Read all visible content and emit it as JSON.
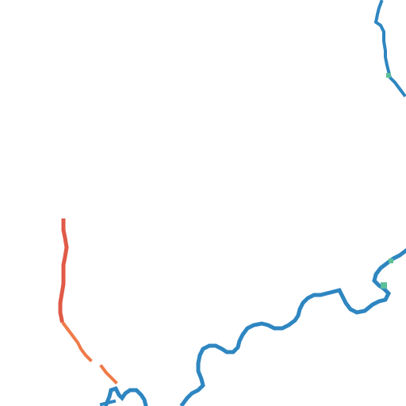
{
  "map": {
    "background_color": "#ffffff",
    "layers": [
      {
        "name": "blue-route",
        "color": "#2e86c1"
      },
      {
        "name": "red-route",
        "color": "#e05a47"
      },
      {
        "name": "orange-route",
        "color": "#ef7a48"
      },
      {
        "name": "green-marker",
        "color": "#5bbf9a"
      }
    ]
  }
}
